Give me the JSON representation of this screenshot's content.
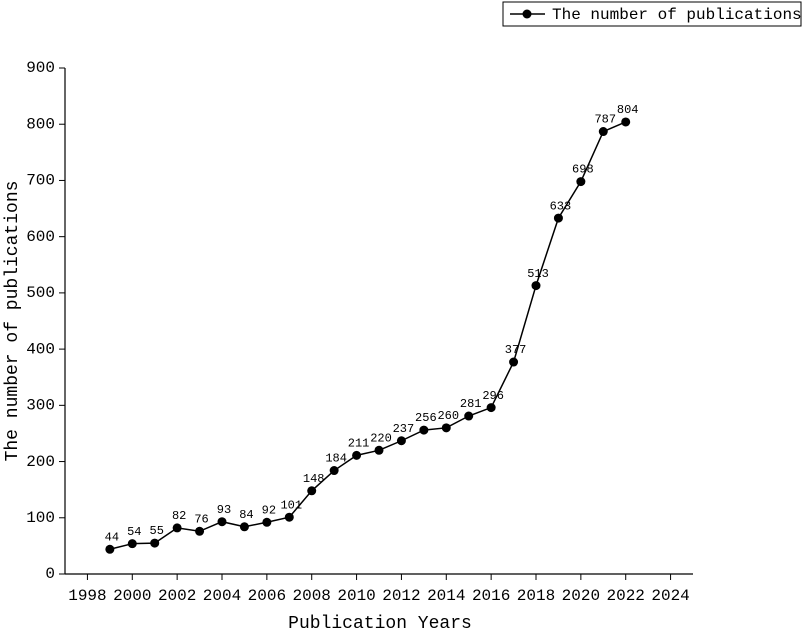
{
  "chart_data": {
    "type": "line",
    "x_label": "Publication Years",
    "y_label": "The number of publications",
    "x": [
      1999,
      2000,
      2001,
      2002,
      2003,
      2004,
      2005,
      2006,
      2007,
      2008,
      2009,
      2010,
      2011,
      2012,
      2013,
      2014,
      2015,
      2016,
      2017,
      2018,
      2019,
      2020,
      2021,
      2022
    ],
    "series": [
      {
        "name": "The number of publications",
        "color": "#000000",
        "values": [
          44,
          54,
          55,
          82,
          76,
          93,
          84,
          92,
          101,
          148,
          184,
          211,
          220,
          237,
          256,
          260,
          281,
          296,
          377,
          513,
          633,
          698,
          787,
          804
        ]
      }
    ],
    "xlim": [
      1997,
      2025
    ],
    "xticks": [
      1998,
      2000,
      2002,
      2004,
      2006,
      2008,
      2010,
      2012,
      2014,
      2016,
      2018,
      2020,
      2022,
      2024
    ],
    "ylim": [
      0,
      900
    ],
    "yticks": [
      0,
      100,
      200,
      300,
      400,
      500,
      600,
      700,
      800,
      900
    ],
    "legend": "top-right",
    "grid": false
  }
}
